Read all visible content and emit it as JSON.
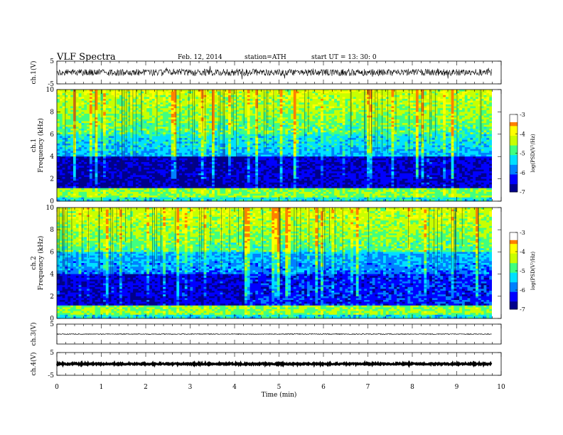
{
  "header": {
    "title": "VLF  Spectra",
    "date": "Feb. 12, 2014",
    "station": "station=ATH",
    "start": "start  UT  =    13: 30: 0"
  },
  "chart_data": [
    {
      "type": "line",
      "panel": "ch1-waveform",
      "ylabel": "ch.1(V)",
      "ylim": [
        -5,
        5
      ],
      "y_ticks": [
        "5",
        "-5"
      ],
      "xlim": [
        0,
        10
      ],
      "series": [
        {
          "values_description_only": false,
          "baseline": 0,
          "amplitude": 1.5
        }
      ]
    },
    {
      "type": "heatmap",
      "panel": "ch1-spectrogram",
      "ylabel": "ch.1\nFrequency  (kHz)",
      "ylim": [
        0,
        10
      ],
      "y_ticks": [
        "0",
        "2",
        "4",
        "6",
        "8",
        "10"
      ],
      "xlim": [
        0,
        10
      ],
      "colorbar": {
        "label": "log(PSD(V²/Hz)",
        "range": [
          -7,
          -3
        ],
        "ticks": [
          "-3",
          "-4",
          "-5",
          "-6",
          "-7"
        ]
      }
    },
    {
      "type": "heatmap",
      "panel": "ch2-spectrogram",
      "ylabel": "ch.2\nFrequency  (kHz)",
      "ylim": [
        0,
        10
      ],
      "y_ticks": [
        "0",
        "2",
        "4",
        "6",
        "8",
        "10"
      ],
      "xlim": [
        0,
        10
      ],
      "colorbar": {
        "label": "log(PSD(V²/Hz)",
        "range": [
          -7,
          -3
        ],
        "ticks": [
          "-3",
          "-4",
          "-5",
          "-6",
          "-7"
        ]
      }
    },
    {
      "type": "line",
      "panel": "ch3-waveform",
      "ylabel": "ch.3(V)",
      "ylim": [
        -5,
        5
      ],
      "y_ticks": [
        "5"
      ],
      "xlim": [
        0,
        10
      ],
      "series": [
        {
          "baseline": 0,
          "amplitude": 0.2
        }
      ]
    },
    {
      "type": "line",
      "panel": "ch4-waveform",
      "ylabel": "ch.4(V)",
      "ylim": [
        -5,
        5
      ],
      "y_ticks": [
        "5",
        "-5"
      ],
      "xlim": [
        0,
        10
      ],
      "series": [
        {
          "baseline": 0,
          "amplitude": 0.3
        }
      ]
    }
  ],
  "xaxis": {
    "label": "Time  (min)",
    "ticks": [
      "0",
      "1",
      "2",
      "3",
      "4",
      "5",
      "6",
      "7",
      "8",
      "9",
      "10"
    ]
  },
  "colors": {
    "scale": [
      "#00008b",
      "#0000ff",
      "#0080ff",
      "#00e0ff",
      "#40ff80",
      "#c8ff00",
      "#ffff00",
      "#ff8000",
      "#ff0000",
      "#ffffff"
    ]
  }
}
